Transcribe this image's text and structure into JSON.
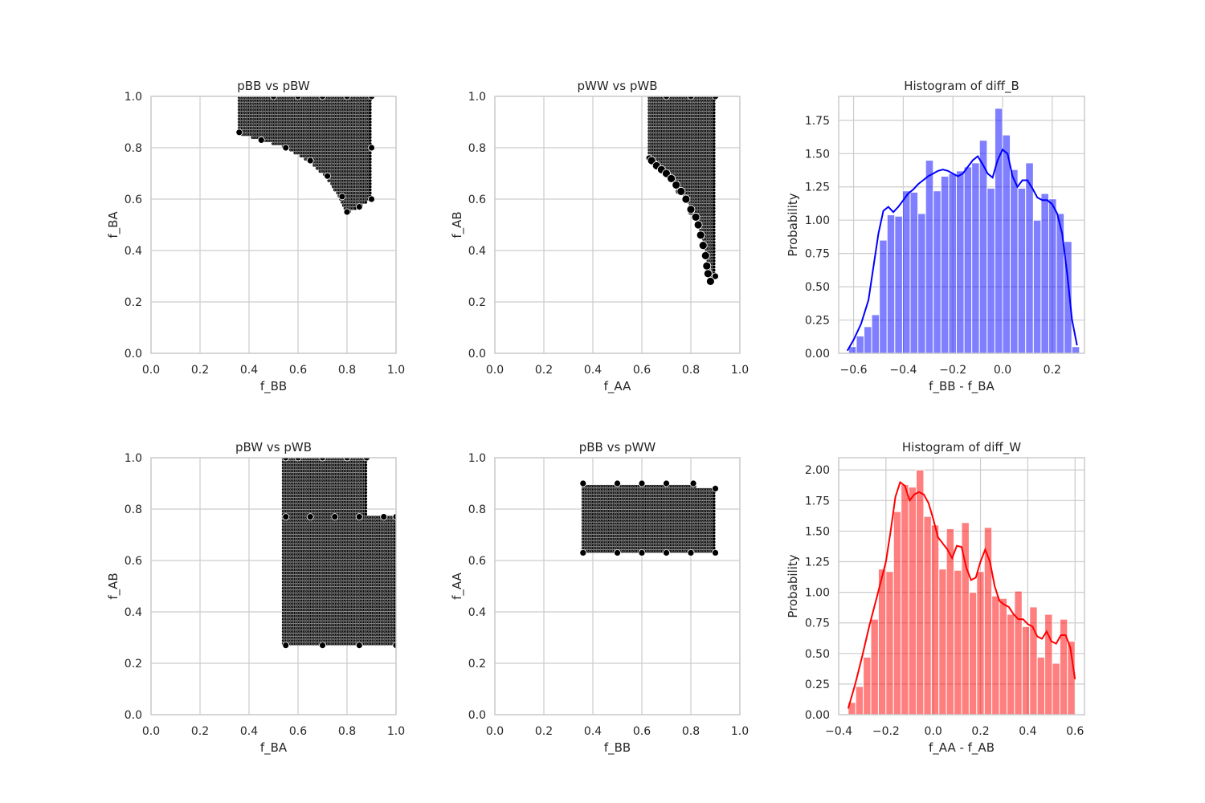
{
  "chart_data": [
    {
      "type": "scatter",
      "title": "pBB vs pBW",
      "xlabel": "f_BB",
      "ylabel": "f_BA",
      "xlim": [
        0,
        1
      ],
      "ylim": [
        0,
        1
      ],
      "xticks": [
        "0.0",
        "0.2",
        "0.4",
        "0.6",
        "0.8",
        "1.0"
      ],
      "yticks": [
        "0.0",
        "0.2",
        "0.4",
        "0.6",
        "0.8",
        "1.0"
      ],
      "grid": true,
      "marker_color": "#000000",
      "x": [
        0.36,
        0.45,
        0.55,
        0.65,
        0.72,
        0.78,
        0.8,
        0.85,
        0.9,
        0.9,
        0.5,
        0.6,
        0.7,
        0.8,
        0.9
      ],
      "y": [
        0.86,
        0.83,
        0.8,
        0.75,
        0.69,
        0.61,
        0.55,
        0.57,
        0.6,
        1.0,
        1.0,
        1.0,
        1.0,
        1.0,
        0.8
      ]
    },
    {
      "type": "scatter",
      "title": "pWW vs pWB",
      "xlabel": "f_AA",
      "ylabel": "f_AB",
      "xlim": [
        0,
        1
      ],
      "ylim": [
        0,
        1
      ],
      "xticks": [
        "0.0",
        "0.2",
        "0.4",
        "0.6",
        "0.8",
        "1.0"
      ],
      "yticks": [
        "0.0",
        "0.2",
        "0.4",
        "0.6",
        "0.8",
        "1.0"
      ],
      "grid": true,
      "marker_color": "#000000",
      "x": [
        0.63,
        0.65,
        0.7,
        0.75,
        0.8,
        0.84,
        0.86,
        0.87,
        0.88,
        0.9,
        0.9,
        0.7,
        0.8
      ],
      "y": [
        0.76,
        0.74,
        0.7,
        0.63,
        0.55,
        0.46,
        0.38,
        0.32,
        0.28,
        0.3,
        1.0,
        1.0,
        1.0
      ]
    },
    {
      "type": "histogram",
      "title": "Histogram of diff_B",
      "xlabel": "f_BB - f_BA",
      "ylabel": "Probability",
      "xlim": [
        -0.66,
        0.33
      ],
      "ylim": [
        0,
        1.93
      ],
      "xticks": [
        "−0.6",
        "−0.4",
        "−0.2",
        "0.0",
        "0.2"
      ],
      "yticks": [
        "0.00",
        "0.25",
        "0.50",
        "0.75",
        "1.00",
        "1.25",
        "1.50",
        "1.75"
      ],
      "grid": true,
      "color": "#0000ff",
      "bin_start": -0.62,
      "bin_width": 0.031,
      "values": [
        0.05,
        0.13,
        0.2,
        0.29,
        0.85,
        1.04,
        1.03,
        1.22,
        1.21,
        1.05,
        1.45,
        1.22,
        1.33,
        1.35,
        1.37,
        1.4,
        1.43,
        1.6,
        1.24,
        1.84,
        1.64,
        1.38,
        1.24,
        1.43,
        1.0,
        1.2,
        1.16,
        1.05,
        0.84,
        0.05
      ],
      "kde_x": [
        -0.625,
        -0.6,
        -0.57,
        -0.54,
        -0.52,
        -0.5,
        -0.48,
        -0.46,
        -0.44,
        -0.42,
        -0.4,
        -0.38,
        -0.36,
        -0.34,
        -0.32,
        -0.3,
        -0.28,
        -0.26,
        -0.24,
        -0.22,
        -0.2,
        -0.18,
        -0.16,
        -0.14,
        -0.12,
        -0.1,
        -0.08,
        -0.06,
        -0.04,
        -0.02,
        0.0,
        0.02,
        0.04,
        0.06,
        0.08,
        0.1,
        0.12,
        0.14,
        0.16,
        0.18,
        0.2,
        0.22,
        0.24,
        0.26,
        0.28,
        0.3
      ],
      "kde_y": [
        0.02,
        0.1,
        0.22,
        0.4,
        0.65,
        0.9,
        1.07,
        1.1,
        1.06,
        1.1,
        1.15,
        1.2,
        1.23,
        1.27,
        1.3,
        1.33,
        1.35,
        1.37,
        1.38,
        1.37,
        1.35,
        1.33,
        1.35,
        1.4,
        1.45,
        1.48,
        1.42,
        1.35,
        1.32,
        1.45,
        1.53,
        1.5,
        1.33,
        1.25,
        1.3,
        1.3,
        1.24,
        1.17,
        1.15,
        1.15,
        1.12,
        1.05,
        0.9,
        0.6,
        0.25,
        0.06
      ]
    },
    {
      "type": "scatter",
      "title": "pBW vs pWB",
      "xlabel": "f_BA",
      "ylabel": "f_AB",
      "xlim": [
        0,
        1
      ],
      "ylim": [
        0,
        1
      ],
      "xticks": [
        "0.0",
        "0.2",
        "0.4",
        "0.6",
        "0.8",
        "1.0"
      ],
      "yticks": [
        "0.0",
        "0.2",
        "0.4",
        "0.6",
        "0.8",
        "1.0"
      ],
      "grid": true,
      "marker_color": "#000000",
      "x": [
        0.55,
        0.6,
        0.7,
        0.8,
        0.88,
        0.55,
        0.65,
        0.75,
        0.85,
        0.95,
        1.0,
        0.55,
        0.7,
        0.85,
        1.0
      ],
      "y": [
        1.0,
        1.0,
        1.0,
        1.0,
        1.0,
        0.77,
        0.77,
        0.77,
        0.77,
        0.77,
        0.77,
        0.27,
        0.27,
        0.27,
        0.27
      ]
    },
    {
      "type": "scatter",
      "title": "pBB vs pWW",
      "xlabel": "f_BB",
      "ylabel": "f_AA",
      "xlim": [
        0,
        1
      ],
      "ylim": [
        0,
        1
      ],
      "xticks": [
        "0.0",
        "0.2",
        "0.4",
        "0.6",
        "0.8",
        "1.0"
      ],
      "yticks": [
        "0.0",
        "0.2",
        "0.4",
        "0.6",
        "0.8",
        "1.0"
      ],
      "grid": true,
      "marker_color": "#000000",
      "x": [
        0.36,
        0.5,
        0.6,
        0.7,
        0.81,
        0.9,
        0.36,
        0.5,
        0.6,
        0.7,
        0.8,
        0.9
      ],
      "y": [
        0.9,
        0.9,
        0.9,
        0.9,
        0.9,
        0.88,
        0.63,
        0.63,
        0.63,
        0.63,
        0.63,
        0.63
      ]
    },
    {
      "type": "histogram",
      "title": "Histogram of diff_W",
      "xlabel": "f_AA - f_AB",
      "ylabel": "Probability",
      "xlim": [
        -0.4,
        0.64
      ],
      "ylim": [
        0,
        2.1
      ],
      "xticks": [
        "−0.4",
        "−0.2",
        "0.0",
        "0.2",
        "0.4",
        "0.6"
      ],
      "yticks": [
        "0.00",
        "0.25",
        "0.50",
        "0.75",
        "1.00",
        "1.25",
        "1.50",
        "1.75",
        "2.00"
      ],
      "grid": true,
      "color": "#ff0000",
      "bin_start": -0.36,
      "bin_width": 0.032,
      "values": [
        0.1,
        0.23,
        0.47,
        0.78,
        1.19,
        1.17,
        1.66,
        1.88,
        1.86,
        2.0,
        1.62,
        1.55,
        1.19,
        1.52,
        1.18,
        1.57,
        1.0,
        1.17,
        1.53,
        0.97,
        0.95,
        0.82,
        1.01,
        0.72,
        0.88,
        0.47,
        0.82,
        0.42,
        0.78,
        0.6
      ],
      "kde_x": [
        -0.36,
        -0.33,
        -0.3,
        -0.27,
        -0.24,
        -0.22,
        -0.2,
        -0.18,
        -0.16,
        -0.14,
        -0.12,
        -0.1,
        -0.08,
        -0.06,
        -0.04,
        -0.02,
        0.0,
        0.02,
        0.04,
        0.06,
        0.08,
        0.1,
        0.12,
        0.14,
        0.16,
        0.18,
        0.2,
        0.22,
        0.24,
        0.26,
        0.28,
        0.3,
        0.32,
        0.34,
        0.36,
        0.38,
        0.4,
        0.42,
        0.44,
        0.46,
        0.48,
        0.5,
        0.52,
        0.54,
        0.56,
        0.58,
        0.6
      ],
      "kde_y": [
        0.05,
        0.25,
        0.48,
        0.73,
        0.95,
        1.1,
        1.25,
        1.5,
        1.78,
        1.9,
        1.87,
        1.75,
        1.8,
        1.82,
        1.8,
        1.73,
        1.6,
        1.45,
        1.4,
        1.35,
        1.28,
        1.38,
        1.37,
        1.2,
        1.1,
        1.12,
        1.25,
        1.35,
        1.25,
        1.05,
        0.93,
        0.9,
        0.88,
        0.82,
        0.78,
        0.78,
        0.74,
        0.72,
        0.64,
        0.62,
        0.68,
        0.6,
        0.58,
        0.65,
        0.65,
        0.55,
        0.29
      ]
    }
  ]
}
